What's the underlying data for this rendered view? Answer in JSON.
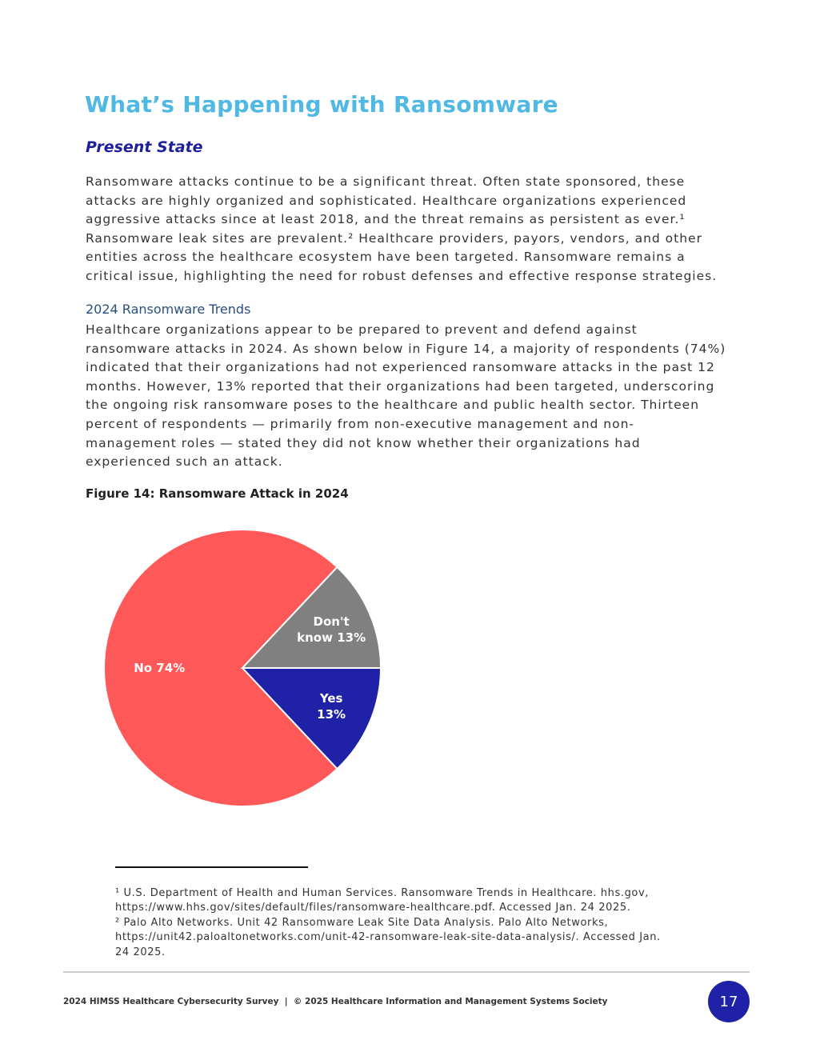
{
  "title": "What’s Happening with Ransomware",
  "section_heading": "Present State",
  "paragraph1": [
    "Ransomware attacks continue to be a significant threat. Often state sponsored, these",
    "attacks are highly organized and sophisticated. Healthcare organizations experienced",
    "aggressive attacks since at least 2018, and the threat remains as persistent as ever.¹",
    "Ransomware leak sites are prevalent.² Healthcare providers, payors, vendors, and other",
    "entities across the healthcare ecosystem have been targeted. Ransomware remains a",
    "critical issue, highlighting the need for robust defenses and effective response strategies."
  ],
  "subheading": "2024 Ransomware Trends",
  "paragraph2": [
    "Healthcare organizations appear to be prepared to prevent and defend against",
    "ransomware attacks in 2024. As shown below in Figure 14, a majority of respondents (74%)",
    "indicated that their organizations had not experienced ransomware attacks in the past 12",
    "months. However, 13% reported that their organizations had been targeted, underscoring",
    "the ongoing risk ransomware poses to the healthcare and public health sector. Thirteen",
    "percent of respondents — primarily from non-executive management and non-",
    "management roles — stated they did not know whether their organizations had",
    "experienced such an attack."
  ],
  "figure_caption": "Figure 14: Ransomware Attack in 2024",
  "chart_data": {
    "type": "pie",
    "title": "",
    "slices": [
      {
        "label": "Yes",
        "value": 13,
        "label_lines": [
          "Yes",
          "13%"
        ],
        "color": "#1f22a6"
      },
      {
        "label": "No",
        "value": 74,
        "label_lines": [
          "No 74%"
        ],
        "color": "#fe5858"
      },
      {
        "label": "Don't know",
        "value": 13,
        "label_lines": [
          "Don't",
          "know 13%"
        ],
        "color": "#808080"
      }
    ]
  },
  "footnotes": [
    "¹ U.S. Department of Health and Human Services. Ransomware Trends in Healthcare. hhs.gov,",
    "https://www.hhs.gov/sites/default/files/ransomware-healthcare.pdf. Accessed Jan. 24 2025.",
    "² Palo Alto Networks. Unit 42 Ransomware Leak Site Data Analysis. Palo Alto Networks,",
    "https://unit42.paloaltonetworks.com/unit-42-ransomware-leak-site-data-analysis/. Accessed Jan.",
    "24 2025."
  ],
  "footer": {
    "text": "2024 HIMSS Healthcare Cybersecurity Survey  |  © 2025 Healthcare Information and Management Systems Society",
    "page_number": "17",
    "page_badge_color": "#1f22a6"
  }
}
